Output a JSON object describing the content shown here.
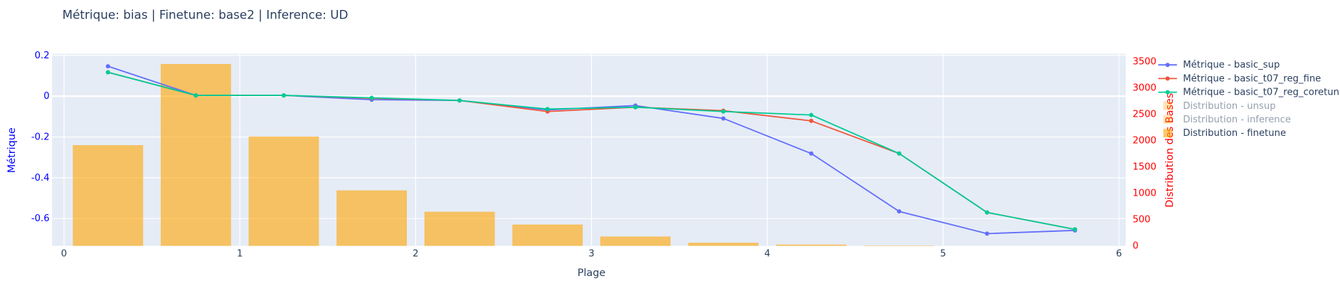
{
  "chart_data": {
    "type": "bar_line",
    "title": "Métrique: bias | Finetune: base2 | Inference: UD",
    "x_label": "Plage",
    "y_label": "Métrique",
    "y2_label": "Distribution des Bases",
    "xlim": [
      -0.068,
      6.039
    ],
    "xticks": [
      0,
      1,
      2,
      3,
      4,
      5,
      6
    ],
    "ylim": [
      -0.734,
      0.208
    ],
    "yticks": [
      -0.6,
      -0.4,
      -0.2,
      0,
      0.2
    ],
    "y2lim": [
      0,
      3646
    ],
    "y2ticks": [
      0,
      500,
      1000,
      1500,
      2000,
      2500,
      3000,
      3500
    ],
    "grid": true,
    "legend": "right",
    "series": [
      {
        "name": "Métrique - basic_sup",
        "color": "#636efa",
        "kind": "line",
        "x": [
          0.25,
          0.75,
          1.25,
          1.75,
          2.25,
          2.75,
          3.25,
          3.75,
          4.25,
          4.75,
          5.25,
          5.75
        ],
        "values": [
          0.147,
          0.004,
          0.004,
          -0.017,
          -0.021,
          -0.067,
          -0.046,
          -0.109,
          -0.281,
          -0.565,
          -0.674,
          -0.658
        ]
      },
      {
        "name": "Métrique - basic_t07_reg_fine",
        "color": "#ef553b",
        "kind": "line",
        "x": [
          0.25,
          0.75,
          1.25,
          1.75,
          2.25,
          2.75,
          3.25,
          3.75,
          4.25,
          4.75,
          5.25,
          5.75
        ],
        "values": [
          0.117,
          0.004,
          0.004,
          -0.01,
          -0.021,
          -0.075,
          -0.054,
          -0.071,
          -0.121,
          -0.281,
          -0.57,
          -0.653
        ]
      },
      {
        "name": "Métrique - basic_t07_reg_coretune",
        "color": "#00cc96",
        "kind": "line",
        "x": [
          0.25,
          0.75,
          1.25,
          1.75,
          2.25,
          2.75,
          3.25,
          3.75,
          4.25,
          4.75,
          5.25,
          5.75
        ],
        "values": [
          0.117,
          0.004,
          0.004,
          -0.008,
          -0.021,
          -0.063,
          -0.054,
          -0.075,
          -0.092,
          -0.281,
          -0.57,
          -0.653
        ]
      },
      {
        "name": "Distribution - unsup",
        "color": "#FFA500",
        "kind": "bar",
        "hidden": true
      },
      {
        "name": "Distribution - inference",
        "color": "#FFA500",
        "kind": "bar",
        "hidden": true
      },
      {
        "name": "Distribution - finetune",
        "color": "#FFA500",
        "kind": "bar",
        "axis": "y2",
        "opacity": 0.6,
        "width": 0.4,
        "x": [
          0.25,
          0.75,
          1.25,
          1.75,
          2.25,
          2.75,
          3.25,
          3.75,
          4.25,
          4.75
        ],
        "values": [
          1912,
          3452,
          2075,
          1053,
          648,
          405,
          178,
          60,
          25,
          8
        ]
      }
    ]
  }
}
